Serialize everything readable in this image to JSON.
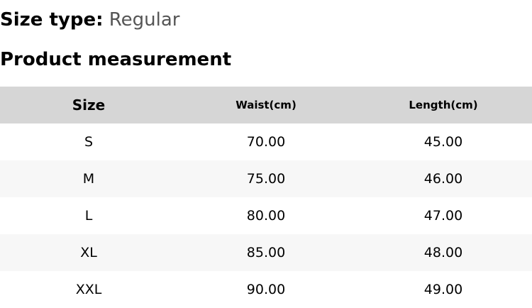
{
  "size_type": {
    "label": "Size type:",
    "value": "Regular"
  },
  "title": "Product measurement",
  "table": {
    "headers": [
      "Size",
      "Waist(cm)",
      "Length(cm)"
    ],
    "rows": [
      [
        "S",
        "70.00",
        "45.00"
      ],
      [
        "M",
        "75.00",
        "46.00"
      ],
      [
        "L",
        "80.00",
        "47.00"
      ],
      [
        "XL",
        "85.00",
        "48.00"
      ],
      [
        "XXL",
        "90.00",
        "49.00"
      ]
    ]
  },
  "colors": {
    "header_bg": "#d6d6d6",
    "alt_row_bg": "#f7f7f7",
    "value_text": "#555555"
  }
}
